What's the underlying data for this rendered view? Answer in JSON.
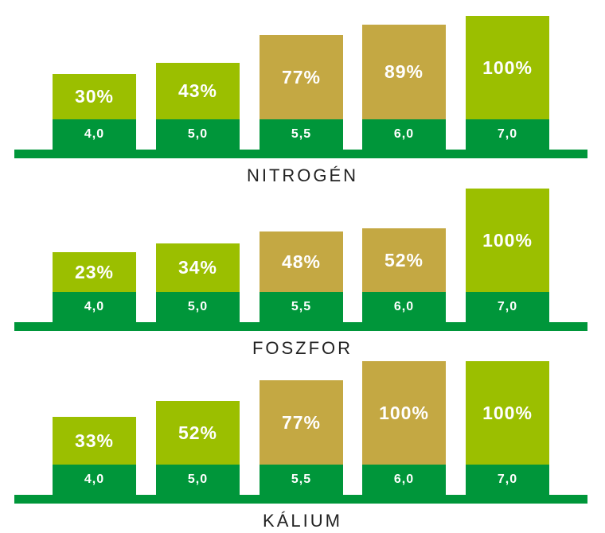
{
  "colors": {
    "green_light": "#9bbf00",
    "gold": "#c4a843",
    "green_dark": "#00963a"
  },
  "chart_data": [
    {
      "type": "bar",
      "title": "NITROGÉN",
      "categories": [
        "4,0",
        "5,0",
        "5,5",
        "6,0",
        "7,0"
      ],
      "values": [
        30,
        43,
        77,
        89,
        100
      ],
      "value_labels": [
        "30%",
        "43%",
        "77%",
        "89%",
        "100%"
      ],
      "bar_colors": [
        "#9bbf00",
        "#9bbf00",
        "#c4a843",
        "#c4a843",
        "#9bbf00"
      ],
      "ylim": [
        0,
        100
      ]
    },
    {
      "type": "bar",
      "title": "FOSZFOR",
      "categories": [
        "4,0",
        "5,0",
        "5,5",
        "6,0",
        "7,0"
      ],
      "values": [
        23,
        34,
        48,
        52,
        100
      ],
      "value_labels": [
        "23%",
        "34%",
        "48%",
        "52%",
        "100%"
      ],
      "bar_colors": [
        "#9bbf00",
        "#9bbf00",
        "#c4a843",
        "#c4a843",
        "#9bbf00"
      ],
      "ylim": [
        0,
        100
      ]
    },
    {
      "type": "bar",
      "title": "KÁLIUM",
      "categories": [
        "4,0",
        "5,0",
        "5,5",
        "6,0",
        "7,0"
      ],
      "values": [
        33,
        52,
        77,
        100,
        100
      ],
      "value_labels": [
        "33%",
        "52%",
        "77%",
        "100%",
        "100%"
      ],
      "bar_colors": [
        "#9bbf00",
        "#9bbf00",
        "#c4a843",
        "#c4a843",
        "#9bbf00"
      ],
      "ylim": [
        0,
        100
      ]
    }
  ]
}
